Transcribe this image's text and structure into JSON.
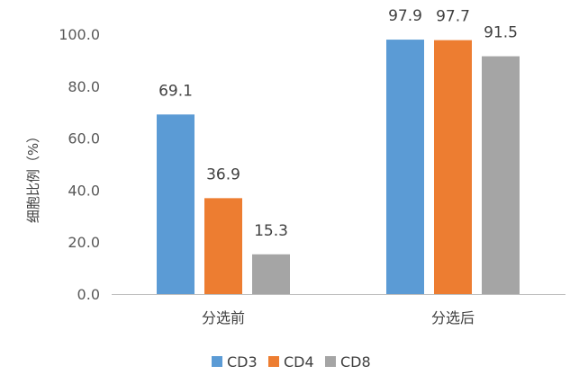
{
  "chart_data": {
    "type": "bar",
    "title": "",
    "xlabel": "",
    "ylabel": "细胞比例（%）",
    "categories": [
      "分选前",
      "分选后"
    ],
    "series": [
      {
        "name": "CD3",
        "color": "#5B9BD5",
        "values": [
          69.1,
          97.9
        ]
      },
      {
        "name": "CD4",
        "color": "#ED7D31",
        "values": [
          36.9,
          97.7
        ]
      },
      {
        "name": "CD8",
        "color": "#A5A5A5",
        "values": [
          15.3,
          91.5
        ]
      }
    ],
    "ylim": [
      0,
      100
    ],
    "yticks": [
      "0.0",
      "20.0",
      "40.0",
      "60.0",
      "80.0",
      "100.0"
    ],
    "ytick_values": [
      0,
      20,
      40,
      60,
      80,
      100
    ],
    "data_labels": [
      [
        "69.1",
        "97.9"
      ],
      [
        "36.9",
        "97.7"
      ],
      [
        "15.3",
        "91.5"
      ]
    ],
    "grid": false,
    "legend_position": "bottom",
    "axis_color": "#BFBFBF"
  }
}
